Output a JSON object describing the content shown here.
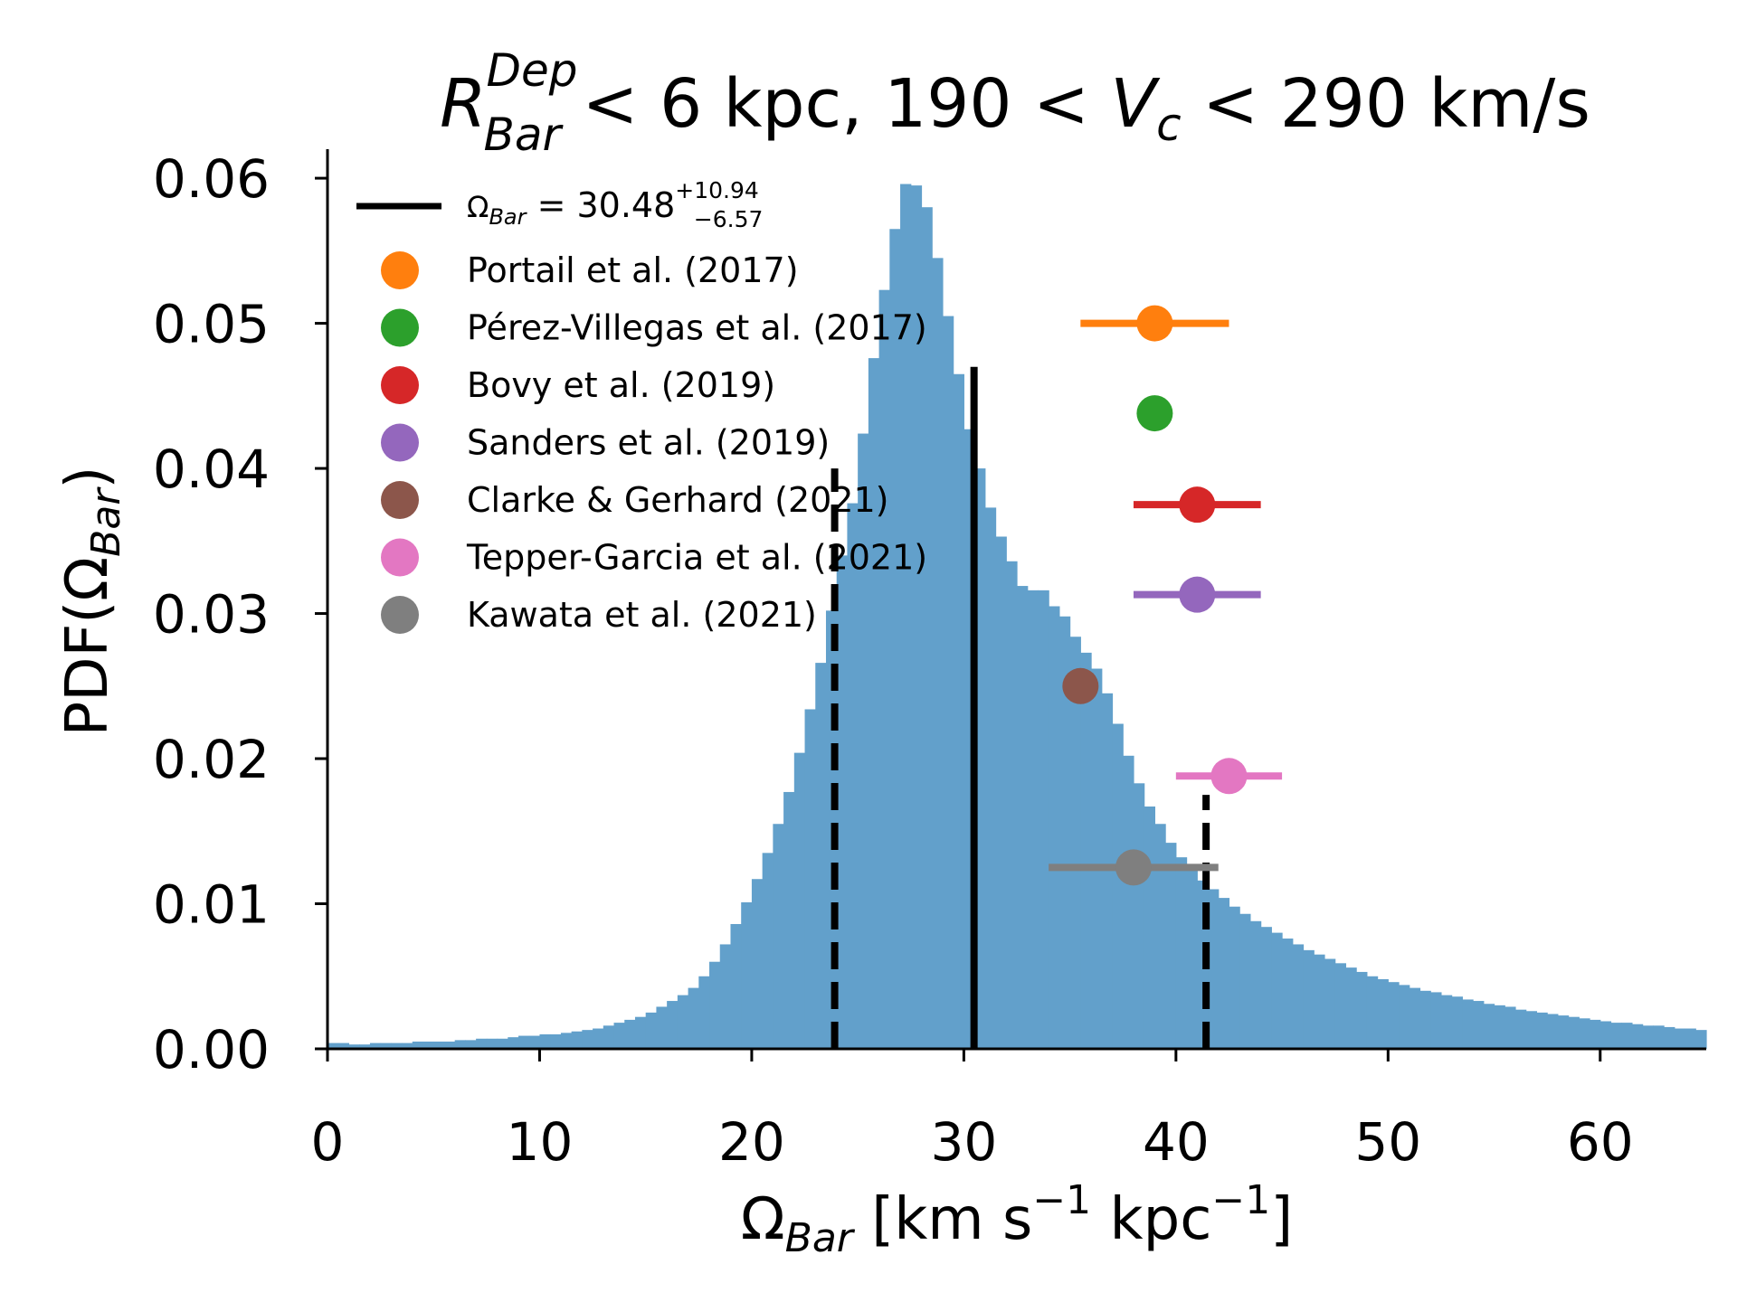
{
  "chart_data": {
    "type": "histogram",
    "title": {
      "r_sym": "R",
      "r_sup": "Dep",
      "r_sub": "Bar",
      "part1": " < 6 kpc,  190 < ",
      "v_sym": "V",
      "v_sub": "c",
      "part2": " < 290 km/s"
    },
    "xlabel": {
      "sym": "Ω",
      "sub": "Bar",
      "p1": " [km s",
      "sup1": "−1",
      "p2": " kpc",
      "sup2": "−1",
      "p3": "]"
    },
    "ylabel": {
      "pre": "PDF(Ω",
      "sub": "Bar",
      "post": ")"
    },
    "xlim": [
      0,
      65
    ],
    "ylim": [
      0,
      0.062
    ],
    "xticks": [
      "0",
      "10",
      "20",
      "30",
      "40",
      "50",
      "60"
    ],
    "xtick_values": [
      0,
      10,
      20,
      30,
      40,
      50,
      60
    ],
    "yticks": [
      "0.00",
      "0.01",
      "0.02",
      "0.03",
      "0.04",
      "0.05",
      "0.06"
    ],
    "ytick_values": [
      0,
      0.01,
      0.02,
      0.03,
      0.04,
      0.05,
      0.06
    ],
    "colors": {
      "hist": "#62a0cb",
      "portail": "#ff7f0e",
      "perez": "#2ca02c",
      "bovy": "#d62728",
      "sanders": "#9467bd",
      "clarke": "#8c564b",
      "tepper": "#e377c2",
      "kawata": "#7f7f7f"
    },
    "histogram": {
      "bin_start": 0,
      "bin_width": 0.5,
      "values": [
        0.0004,
        0.0004,
        0.0003,
        0.0003,
        0.0004,
        0.0004,
        0.0004,
        0.0004,
        0.0005,
        0.0005,
        0.0005,
        0.0005,
        0.0006,
        0.0006,
        0.0007,
        0.0007,
        0.0007,
        0.0008,
        0.0009,
        0.0009,
        0.001,
        0.001,
        0.0011,
        0.0012,
        0.0013,
        0.0014,
        0.0016,
        0.0018,
        0.002,
        0.0022,
        0.0025,
        0.0029,
        0.0033,
        0.0037,
        0.0042,
        0.005,
        0.006,
        0.0072,
        0.0086,
        0.0101,
        0.0117,
        0.0135,
        0.0155,
        0.0177,
        0.0204,
        0.0234,
        0.0266,
        0.0302,
        0.034,
        0.0376,
        0.0424,
        0.0476,
        0.0523,
        0.0565,
        0.0596,
        0.0595,
        0.058,
        0.0545,
        0.0505,
        0.0465,
        0.0427,
        0.04,
        0.0373,
        0.0353,
        0.0336,
        0.0319,
        0.0316,
        0.0316,
        0.0305,
        0.0298,
        0.0284,
        0.0273,
        0.0262,
        0.0245,
        0.0224,
        0.0202,
        0.0183,
        0.0167,
        0.0155,
        0.0142,
        0.0132,
        0.0124,
        0.0116,
        0.011,
        0.0104,
        0.0098,
        0.0093,
        0.0088,
        0.0084,
        0.008,
        0.0076,
        0.0072,
        0.0068,
        0.0065,
        0.0062,
        0.0059,
        0.0056,
        0.0053,
        0.005,
        0.0048,
        0.0046,
        0.0044,
        0.0042,
        0.004,
        0.0039,
        0.0037,
        0.0036,
        0.0034,
        0.0033,
        0.0031,
        0.003,
        0.0029,
        0.0027,
        0.0026,
        0.0025,
        0.0024,
        0.0023,
        0.0022,
        0.0021,
        0.002,
        0.0019,
        0.0018,
        0.0018,
        0.0017,
        0.0016,
        0.0016,
        0.0015,
        0.0014,
        0.0014,
        0.0013
      ]
    },
    "median_line": {
      "x": 30.48,
      "y_top": 0.047
    },
    "percentile_lines": [
      {
        "x": 23.91,
        "y_top": 0.04
      },
      {
        "x": 41.42,
        "y_top": 0.0175
      }
    ],
    "legend": {
      "position": "upper-left",
      "line_entry": {
        "sym": "Ω",
        "sub": "Bar",
        "eq": " = 30.48",
        "sup": "+10.94",
        "sub2": "−6.57"
      },
      "entries": [
        {
          "label": "Portail et al. (2017)",
          "color_key": "portail"
        },
        {
          "label": "Pérez-Villegas et al. (2017)",
          "color_key": "perez"
        },
        {
          "label": "Bovy et al. (2019)",
          "color_key": "bovy"
        },
        {
          "label": "Sanders et al. (2019)",
          "color_key": "sanders"
        },
        {
          "label": "Clarke & Gerhard (2021)",
          "color_key": "clarke"
        },
        {
          "label": "Tepper-Garcia et al. (2021)",
          "color_key": "tepper"
        },
        {
          "label": "Kawata et al. (2021)",
          "color_key": "kawata"
        }
      ]
    },
    "measurements": [
      {
        "name": "Portail et al. (2017)",
        "color_key": "portail",
        "x": 39.0,
        "y": 0.05,
        "xerr_low": 3.5,
        "xerr_high": 3.5
      },
      {
        "name": "Pérez-Villegas et al. (2017)",
        "color_key": "perez",
        "x": 39.0,
        "y": 0.0438,
        "xerr_low": 0,
        "xerr_high": 0
      },
      {
        "name": "Bovy et al. (2019)",
        "color_key": "bovy",
        "x": 41.0,
        "y": 0.0375,
        "xerr_low": 3.0,
        "xerr_high": 3.0
      },
      {
        "name": "Sanders et al. (2019)",
        "color_key": "sanders",
        "x": 41.0,
        "y": 0.0313,
        "xerr_low": 3.0,
        "xerr_high": 3.0
      },
      {
        "name": "Clarke & Gerhard (2021)",
        "color_key": "clarke",
        "x": 35.5,
        "y": 0.025,
        "xerr_low": 0,
        "xerr_high": 0
      },
      {
        "name": "Tepper-Garcia et al. (2021)",
        "color_key": "tepper",
        "x": 42.5,
        "y": 0.0188,
        "xerr_low": 2.5,
        "xerr_high": 2.5
      },
      {
        "name": "Kawata et al. (2021)",
        "color_key": "kawata",
        "x": 38.0,
        "y": 0.0125,
        "xerr_low": 4.0,
        "xerr_high": 4.0
      }
    ]
  }
}
